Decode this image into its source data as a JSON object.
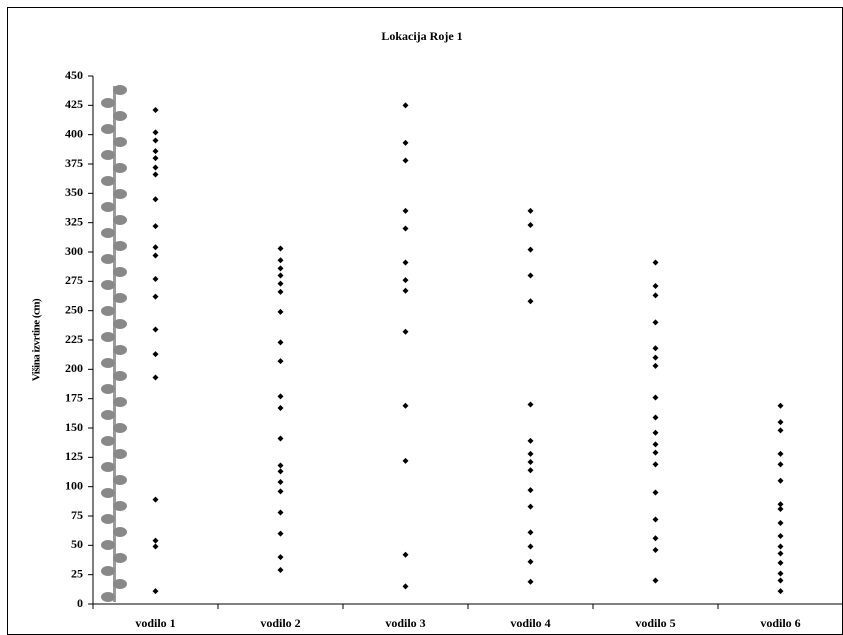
{
  "chart_data": {
    "type": "strip",
    "title": "Lokacija Roje 1",
    "y_label": "Višina izvrtine (cm)",
    "categories": [
      "vodilo 1",
      "vodilo 2",
      "vodilo 3",
      "vodilo 4",
      "vodilo 5",
      "vodilo 6"
    ],
    "values": [
      [
        421,
        402,
        395,
        386,
        380,
        372,
        366,
        345,
        322,
        304,
        297,
        277,
        262,
        234,
        213,
        193,
        89,
        54,
        49,
        11
      ],
      [
        303,
        293,
        286,
        280,
        273,
        266,
        249,
        223,
        207,
        177,
        167,
        141,
        118,
        113,
        104,
        96,
        78,
        60,
        40,
        29
      ],
      [
        425,
        393,
        378,
        335,
        320,
        291,
        276,
        267,
        232,
        169,
        122,
        42,
        15
      ],
      [
        335,
        323,
        302,
        280,
        258,
        170,
        139,
        128,
        121,
        114,
        97,
        83,
        61,
        49,
        36,
        19
      ],
      [
        291,
        271,
        263,
        240,
        218,
        210,
        203,
        176,
        159,
        146,
        136,
        129,
        119,
        95,
        72,
        56,
        46,
        20
      ],
      [
        169,
        155,
        148,
        128,
        119,
        105,
        85,
        81,
        69,
        58,
        49,
        43,
        35,
        26,
        20,
        11
      ]
    ],
    "color": "#000000",
    "ylim": [
      0,
      450
    ],
    "yticks": [
      0,
      25,
      50,
      75,
      100,
      125,
      150,
      175,
      200,
      225,
      250,
      275,
      300,
      325,
      350,
      375,
      400,
      425,
      450
    ]
  }
}
